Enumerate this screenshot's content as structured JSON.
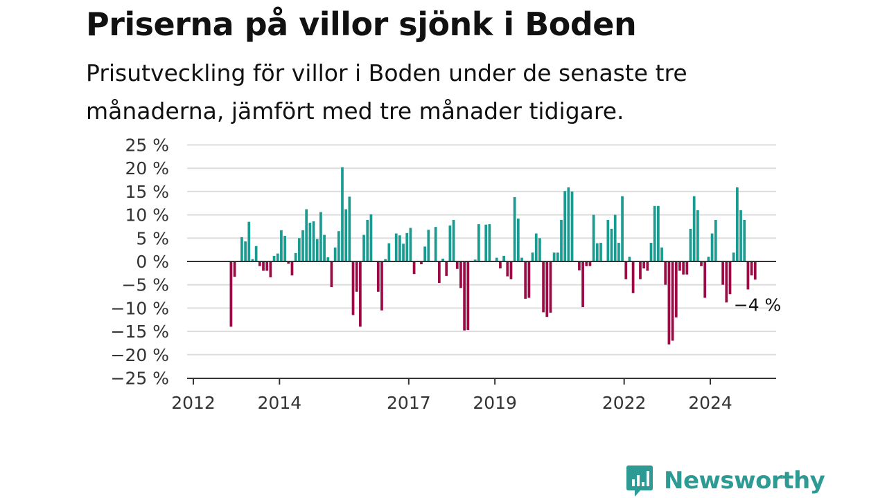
{
  "header": {
    "title": "Priserna på villor sjönk i Boden",
    "subtitle": "Prisutveckling för villor i Boden under de senaste tre månaderna, jämfört med tre månader tidigare."
  },
  "chart_data": {
    "type": "bar",
    "title": "Priserna på villor sjönk i Boden",
    "subtitle": "Prisutveckling för villor i Boden under de senaste tre månaderna, jämfört med tre månader tidigare.",
    "xlabel": "",
    "ylabel": "",
    "x_start": "2012-06",
    "frequency": "monthly",
    "ylim": [
      -25,
      25
    ],
    "y_ticks": [
      25,
      20,
      15,
      10,
      5,
      0,
      -5,
      -10,
      -15,
      -20,
      -25
    ],
    "y_tick_labels": [
      "25 %",
      "20 %",
      "15 %",
      "10 %",
      "5 %",
      "0 %",
      "−5 %",
      "−10 %",
      "−15 %",
      "−20 %",
      "−25 %"
    ],
    "x_ticks": [
      "2012",
      "2014",
      "2017",
      "2019",
      "2022",
      "2024"
    ],
    "grid": true,
    "colors": {
      "positive": "#1a9b91",
      "negative": "#9c0a45",
      "zero_line": "#333333",
      "grid": "#dddddd"
    },
    "values": [
      0,
      0,
      0,
      0,
      0,
      -14,
      -3.3,
      0,
      5.2,
      4.3,
      8.5,
      0.5,
      3.3,
      -1,
      -2,
      -2,
      -3.4,
      1.2,
      1.7,
      6.7,
      5.5,
      -0.5,
      -3,
      1.8,
      5,
      6.7,
      11.2,
      8.3,
      8.6,
      4.8,
      10.6,
      5.7,
      0.9,
      -5.5,
      3,
      6.5,
      20.2,
      11.2,
      13.9,
      -11.5,
      -6.5,
      -14,
      5.7,
      8.9,
      10.1,
      0,
      -6.5,
      -10.5,
      0.5,
      3.9,
      0,
      6,
      5.6,
      3.8,
      6.1,
      7.2,
      -2.7,
      0,
      -0.6,
      3.2,
      6.8,
      0,
      7.4,
      -4.6,
      0.6,
      -3.1,
      7.7,
      8.9,
      -1.6,
      -5.7,
      -14.8,
      -14.7,
      0,
      0.4,
      8,
      0,
      7.9,
      8,
      0,
      0.8,
      -1.5,
      1.2,
      -3.2,
      -3.8,
      13.8,
      9.2,
      0.8,
      -8,
      -7.8,
      1.9,
      6,
      5,
      -10.9,
      -11.9,
      -11,
      1.9,
      1.9,
      8.9,
      15.1,
      15.9,
      15,
      0,
      -1.9,
      -9.8,
      -1,
      -1,
      10,
      3.9,
      4,
      0,
      8.9,
      7,
      10,
      4,
      14,
      -3.8,
      1,
      -6.8,
      0,
      -3.8,
      -1.5,
      -2,
      4,
      11.9,
      11.9,
      3,
      -5,
      -17.8,
      -17,
      -12,
      -2,
      -2.8,
      -2.8,
      7,
      14,
      11,
      -1,
      -7.8,
      1,
      6,
      8.9,
      0,
      -5,
      -8.8,
      -7,
      1.9,
      15.9,
      11,
      8.9,
      -6,
      -3,
      -3.9
    ],
    "last_value_label": "−4 %"
  },
  "branding": {
    "logo_name": "Newsworthy",
    "logo_icon": "bar-chart-speech-bubble-icon",
    "logo_color": "#2e9a94"
  }
}
